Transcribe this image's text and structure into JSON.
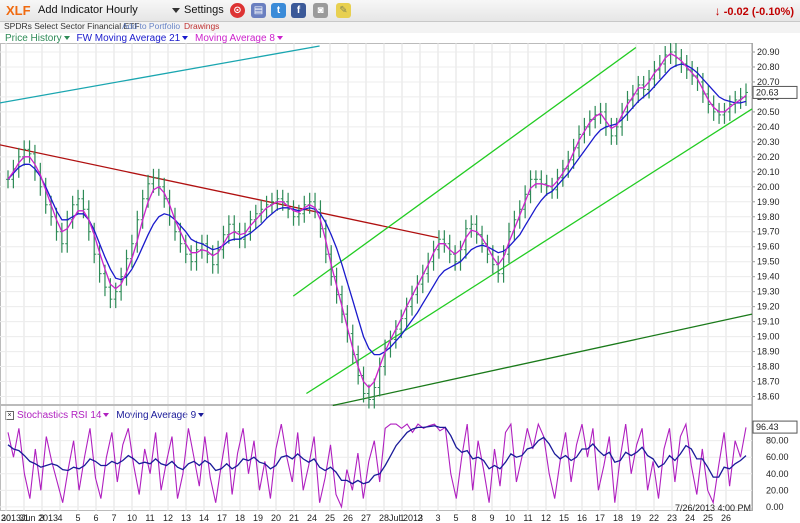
{
  "toolbar": {
    "symbol": "XLF",
    "add_indicator": "Add Indicator",
    "interval": "Hourly",
    "settings": "Settings",
    "change": "-0.02 (-0.10%)"
  },
  "subbar": {
    "name": "SPDRs Select Sector Financial ETF",
    "add_portfolio": "Add to Portfolio",
    "drawings": "Drawings"
  },
  "legend": {
    "price_history": "Price History",
    "fw_ma": "FW Moving Average 21",
    "ma8": "Moving Average 8",
    "stoch": "Stochastics RSI 14",
    "ma9": "Moving Average 9"
  },
  "price_box": "20.63",
  "stoch_box": "96.43",
  "timestamp": "7/26/2013 4:00 PM",
  "colors": {
    "price": "#2e8b57",
    "fw_ma": "#1a1acc",
    "ma8": "#cc22cc",
    "trend_red": "#b01010",
    "trend_cyan": "#1aa6b0",
    "channel_green": "#22cc22",
    "trend_darkgreen": "#1a7a1a",
    "stoch": "#b020c0",
    "stoch_ma": "#1a1a99",
    "change": "#c00000",
    "symbol": "#f06a10"
  },
  "chart_data": {
    "type": "line",
    "title": "XLF",
    "price": {
      "ylim": [
        18.55,
        20.96
      ],
      "yticks": [
        18.6,
        18.7,
        18.8,
        18.9,
        19.0,
        19.1,
        19.2,
        19.3,
        19.4,
        19.5,
        19.6,
        19.7,
        19.8,
        19.9,
        20.0,
        20.1,
        20.2,
        20.3,
        20.4,
        20.5,
        20.6,
        20.7,
        20.8,
        20.9
      ],
      "ytick_labels": [
        "18.60",
        "18.70",
        "18.80",
        "18.90",
        "19.00",
        "19.10",
        "19.20",
        "19.30",
        "19.40",
        "19.50",
        "19.60",
        "19.70",
        "19.80",
        "19.90",
        "20.00",
        "20.10",
        "20.20",
        "20.30",
        "20.40",
        "20.50",
        "20.60",
        "20.70",
        "20.80",
        "20.90"
      ],
      "last": 20.63
    },
    "x_day_labels": [
      "30",
      "31",
      "3",
      "4",
      "5",
      "6",
      "7",
      "10",
      "11",
      "12",
      "13",
      "14",
      "17",
      "18",
      "19",
      "20",
      "21",
      "24",
      "25",
      "26",
      "27",
      "28",
      "1",
      "2",
      "3",
      "5",
      "8",
      "9",
      "10",
      "11",
      "12",
      "15",
      "16",
      "17",
      "18",
      "19",
      "22",
      "23",
      "24",
      "25",
      "26"
    ],
    "x_extra_labels": [
      "2013Jun 2013",
      "Jul 2013"
    ],
    "series": [
      {
        "name": "Price History",
        "values": [
          20.05,
          20.12,
          20.2,
          20.25,
          20.22,
          20.1,
          20.0,
          19.88,
          19.8,
          19.7,
          19.62,
          19.78,
          19.88,
          19.92,
          19.85,
          19.7,
          19.55,
          19.42,
          19.33,
          19.25,
          19.3,
          19.4,
          19.52,
          19.62,
          19.78,
          19.92,
          20.02,
          20.06,
          20.0,
          19.92,
          19.8,
          19.7,
          19.62,
          19.55,
          19.5,
          19.58,
          19.62,
          19.55,
          19.48,
          19.58,
          19.68,
          19.75,
          19.7,
          19.65,
          19.7,
          19.78,
          19.82,
          19.85,
          19.88,
          19.9,
          19.92,
          19.9,
          19.85,
          19.8,
          19.82,
          19.88,
          19.9,
          19.85,
          19.72,
          19.55,
          19.4,
          19.28,
          19.15,
          19.02,
          18.88,
          18.74,
          18.62,
          18.58,
          18.66,
          18.8,
          18.92,
          18.98,
          19.05,
          19.12,
          19.2,
          19.28,
          19.35,
          19.42,
          19.5,
          19.58,
          19.65,
          19.62,
          19.55,
          19.5,
          19.58,
          19.72,
          19.75,
          19.68,
          19.62,
          19.55,
          19.48,
          19.42,
          19.55,
          19.7,
          19.78,
          19.85,
          19.95,
          20.05,
          20.05,
          20.02,
          20.0,
          19.98,
          20.06,
          20.12,
          20.18,
          20.26,
          20.35,
          20.4,
          20.45,
          20.48,
          20.5,
          20.4,
          20.34,
          20.4,
          20.5,
          20.58,
          20.62,
          20.68,
          20.65,
          20.72,
          20.78,
          20.82,
          20.88,
          20.9,
          20.86,
          20.82,
          20.78,
          20.74,
          20.7,
          20.62,
          20.55,
          20.5,
          20.48,
          20.5,
          20.55,
          20.58,
          20.6,
          20.63
        ]
      },
      {
        "name": "FW Moving Average 21",
        "values": [
          20.05,
          20.09,
          20.13,
          20.15,
          20.15,
          20.12,
          20.07,
          20.0,
          19.92,
          19.84,
          19.78,
          19.78,
          19.8,
          19.82,
          19.82,
          19.78,
          19.71,
          19.62,
          19.53,
          19.45,
          19.39,
          19.38,
          19.4,
          19.45,
          19.52,
          19.6,
          19.68,
          19.75,
          19.8,
          19.82,
          19.81,
          19.78,
          19.74,
          19.7,
          19.65,
          19.63,
          19.62,
          19.6,
          19.58,
          19.59,
          19.61,
          19.64,
          19.65,
          19.65,
          19.67,
          19.69,
          19.72,
          19.75,
          19.79,
          19.82,
          19.85,
          19.86,
          19.86,
          19.85,
          19.84,
          19.85,
          19.86,
          19.85,
          19.82,
          19.76,
          19.68,
          19.59,
          19.48,
          19.36,
          19.24,
          19.12,
          19.0,
          18.92,
          18.88,
          18.88,
          18.9,
          18.93,
          18.97,
          19.01,
          19.06,
          19.11,
          19.16,
          19.22,
          19.28,
          19.34,
          19.4,
          19.44,
          19.46,
          19.48,
          19.5,
          19.54,
          19.58,
          19.6,
          19.61,
          19.6,
          19.58,
          19.56,
          19.57,
          19.6,
          19.64,
          19.68,
          19.74,
          19.8,
          19.86,
          19.91,
          19.95,
          19.97,
          20.01,
          20.05,
          20.09,
          20.14,
          20.19,
          20.24,
          20.29,
          20.34,
          20.38,
          20.4,
          20.41,
          20.42,
          20.45,
          20.49,
          20.53,
          20.57,
          20.6,
          20.63,
          20.67,
          20.71,
          20.75,
          20.79,
          20.81,
          20.82,
          20.81,
          20.79,
          20.76,
          20.72,
          20.68,
          20.64,
          20.6,
          20.58,
          20.57,
          20.56,
          20.56,
          20.57
        ]
      },
      {
        "name": "Moving Average 8",
        "values": [
          20.05,
          20.1,
          20.16,
          20.2,
          20.2,
          20.15,
          20.08,
          19.98,
          19.88,
          19.78,
          19.7,
          19.72,
          19.78,
          19.84,
          19.84,
          19.78,
          19.68,
          19.56,
          19.45,
          19.35,
          19.32,
          19.35,
          19.43,
          19.52,
          19.64,
          19.78,
          19.9,
          19.98,
          20.0,
          19.96,
          19.88,
          19.78,
          19.7,
          19.62,
          19.56,
          19.56,
          19.58,
          19.57,
          19.54,
          19.56,
          19.62,
          19.68,
          19.7,
          19.68,
          19.69,
          19.74,
          19.78,
          19.82,
          19.86,
          19.88,
          19.9,
          19.9,
          19.87,
          19.84,
          19.83,
          19.86,
          19.88,
          19.86,
          19.78,
          19.64,
          19.48,
          19.34,
          19.2,
          19.06,
          18.92,
          18.8,
          18.7,
          18.66,
          18.7,
          18.8,
          18.9,
          18.98,
          19.05,
          19.12,
          19.2,
          19.27,
          19.34,
          19.41,
          19.48,
          19.56,
          19.62,
          19.62,
          19.58,
          19.55,
          19.58,
          19.66,
          19.71,
          19.7,
          19.66,
          19.6,
          19.53,
          19.48,
          19.53,
          19.63,
          19.72,
          19.81,
          19.9,
          19.99,
          20.02,
          20.02,
          20.01,
          20.0,
          20.04,
          20.09,
          20.15,
          20.23,
          20.31,
          20.37,
          20.43,
          20.47,
          20.49,
          20.44,
          20.39,
          20.41,
          20.48,
          20.55,
          20.6,
          20.66,
          20.66,
          20.7,
          20.76,
          20.8,
          20.86,
          20.89,
          20.87,
          20.84,
          20.8,
          20.76,
          20.72,
          20.65,
          20.58,
          20.53,
          20.5,
          20.5,
          20.53,
          20.56,
          20.58,
          20.61
        ]
      }
    ],
    "trendlines": [
      {
        "name": "cyan",
        "from": [
          0,
          20.56
        ],
        "to": [
          97,
          20.94
        ]
      },
      {
        "name": "red",
        "from": [
          0,
          20.28
        ],
        "to": [
          133,
          19.66
        ]
      },
      {
        "name": "channel-upper",
        "from": [
          89,
          19.27
        ],
        "to": [
          193,
          20.93
        ]
      },
      {
        "name": "channel-lower",
        "from": [
          93,
          18.62
        ],
        "to": [
          224,
          20.52
        ]
      },
      {
        "name": "dark-green",
        "from": [
          101,
          18.54
        ],
        "to": [
          224,
          19.15
        ]
      }
    ],
    "stochastics": {
      "ylim": [
        -5,
        105
      ],
      "yticks": [
        0,
        20,
        40,
        60,
        80
      ],
      "ytick_labels": [
        "0.00",
        "20.00",
        "40.00",
        "60.00",
        "80.00"
      ],
      "last": 96.43,
      "series": [
        {
          "name": "Stochastics RSI 14",
          "values": [
            90,
            60,
            95,
            40,
            10,
            70,
            20,
            85,
            55,
            30,
            5,
            45,
            80,
            20,
            60,
            95,
            35,
            10,
            60,
            90,
            30,
            75,
            95,
            50,
            15,
            70,
            40,
            90,
            20,
            55,
            85,
            10,
            40,
            95,
            60,
            25,
            85,
            35,
            5,
            50,
            90,
            15,
            65,
            95,
            40,
            80,
            20,
            55,
            10,
            70,
            100,
            60,
            30,
            90,
            20,
            50,
            85,
            5,
            35,
            75,
            15,
            0,
            45,
            20,
            65,
            10,
            55,
            80,
            30,
            95,
            100,
            100,
            95,
            100,
            90,
            100,
            95,
            98,
            100,
            92,
            96,
            40,
            10,
            60,
            100,
            20,
            80,
            45,
            5,
            70,
            25,
            90,
            100,
            30,
            60,
            95,
            70,
            100,
            85,
            40,
            10,
            55,
            90,
            30,
            75,
            100,
            60,
            95,
            20,
            50,
            85,
            5,
            60,
            100,
            40,
            75,
            95,
            20,
            55,
            10,
            70,
            95,
            30,
            85,
            100,
            50,
            15,
            70,
            20,
            5,
            50,
            90,
            25,
            80,
            60,
            96
          ]
        },
        {
          "name": "Moving Average 9",
          "values": [
            75,
            70,
            68,
            62,
            55,
            52,
            48,
            50,
            52,
            50,
            45,
            44,
            48,
            46,
            50,
            58,
            55,
            50,
            50,
            55,
            52,
            56,
            62,
            58,
            52,
            54,
            52,
            58,
            52,
            50,
            55,
            48,
            45,
            52,
            55,
            50,
            56,
            52,
            44,
            46,
            52,
            46,
            50,
            58,
            56,
            60,
            54,
            52,
            46,
            50,
            60,
            62,
            58,
            64,
            58,
            54,
            58,
            48,
            44,
            48,
            42,
            32,
            32,
            28,
            32,
            28,
            30,
            38,
            40,
            50,
            62,
            74,
            82,
            90,
            94,
            96,
            96,
            97,
            98,
            96,
            96,
            86,
            72,
            66,
            68,
            58,
            60,
            56,
            46,
            50,
            46,
            54,
            64,
            60,
            62,
            70,
            72,
            80,
            84,
            76,
            64,
            58,
            62,
            56,
            60,
            70,
            70,
            76,
            68,
            62,
            66,
            54,
            56,
            66,
            62,
            66,
            72,
            62,
            58,
            48,
            52,
            62,
            56,
            64,
            74,
            70,
            58,
            58,
            48,
            36,
            36,
            48,
            46,
            52,
            56,
            62
          ]
        }
      ]
    }
  }
}
